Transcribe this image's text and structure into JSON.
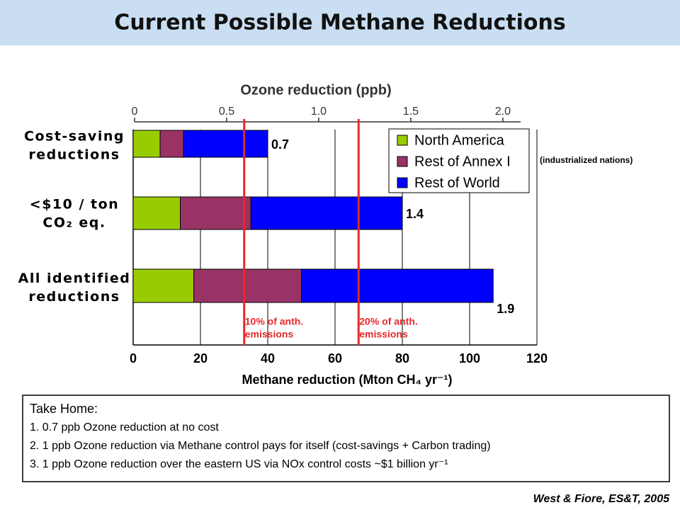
{
  "header": {
    "title": "Current Possible Methane Reductions"
  },
  "chart_data": {
    "type": "stacked_barh",
    "top_axis_title": "Ozone reduction (ppb)",
    "x2lim": [
      0,
      2.185
    ],
    "x2ticks": [
      0,
      0.5,
      {
        "value": 1,
        "label": "1.0"
      },
      1.5,
      {
        "value": 2,
        "label": "2.0"
      }
    ],
    "xlabel": "Methane reduction (Mton CH₄ yr⁻¹)",
    "xlim": [
      0,
      120
    ],
    "xticks": [
      0,
      20,
      40,
      60,
      80,
      100,
      120
    ],
    "grid": true,
    "categories": [
      [
        "Cost-saving",
        "reductions"
      ],
      [
        "<$10 / ton",
        "CO₂ eq."
      ],
      [
        "All identified",
        "reductions"
      ]
    ],
    "series": [
      {
        "name": "North America",
        "color": "#99cc00",
        "values": [
          8,
          14,
          18
        ]
      },
      {
        "name": "Rest of Annex I",
        "color": "#993366",
        "values": [
          7,
          21,
          32
        ]
      },
      {
        "name": "Rest of World",
        "color": "#0000ff",
        "values": [
          25,
          45,
          57
        ]
      }
    ],
    "ozone_labels": [
      0.7,
      1.4,
      1.9
    ],
    "legend": "top right",
    "legend_note": "(industrialized nations)",
    "reference_lines": [
      {
        "value": 33,
        "color": "#e8282b",
        "label": [
          "10% of anth.",
          "emissions"
        ]
      },
      {
        "value": 67,
        "color": "#e8282b",
        "label": [
          "20% of anth.",
          "emissions"
        ]
      }
    ]
  },
  "take_home": {
    "title": "Take Home:",
    "items": [
      "1. 0.7 ppb Ozone reduction at no cost",
      "2. 1 ppb Ozone reduction via Methane control pays for itself (cost-savings + Carbon trading)",
      "3. 1 ppb Ozone reduction over the eastern US via NOx control costs ~$1 billion yr⁻¹"
    ]
  },
  "citation": "West & Fiore, ES&T, 2005"
}
